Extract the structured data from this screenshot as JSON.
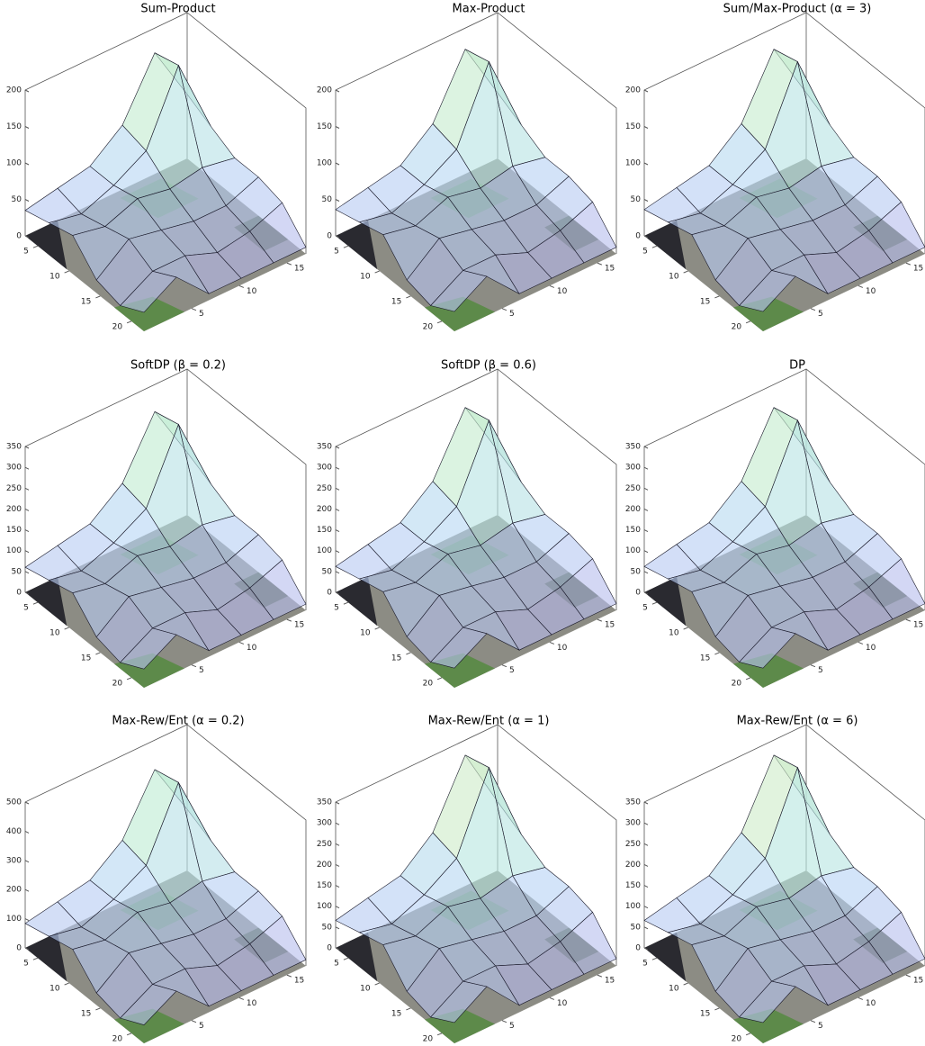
{
  "chart_data": [
    {
      "type": "surface",
      "title": "Sum-Product",
      "zlim": [
        0,
        200
      ],
      "zticks": [
        0,
        50,
        100,
        150,
        200
      ],
      "xlim": [
        3,
        22
      ],
      "xticks": [
        5,
        10,
        15,
        20
      ],
      "ylim": [
        0,
        17
      ],
      "yticks": [
        5,
        10,
        15
      ],
      "z": [
        [
          35,
          44,
          53,
          88,
          166,
          88
        ],
        [
          44,
          35,
          53,
          79,
          175,
          70
        ],
        [
          53,
          44,
          61,
          53,
          61,
          53
        ],
        [
          18,
          53,
          44,
          35,
          35,
          53
        ],
        [
          9,
          35,
          35,
          18,
          26,
          44
        ],
        [
          26,
          53,
          9,
          9,
          9,
          9
        ]
      ]
    },
    {
      "type": "surface",
      "title": "Max-Product",
      "zlim": [
        0,
        200
      ],
      "zticks": [
        0,
        50,
        100,
        150,
        200
      ],
      "xlim": [
        3,
        22
      ],
      "xticks": [
        5,
        10,
        15,
        20
      ],
      "ylim": [
        0,
        17
      ],
      "yticks": [
        5,
        10,
        15
      ],
      "z": [
        [
          36,
          45,
          54,
          90,
          171,
          90
        ],
        [
          45,
          36,
          54,
          81,
          180,
          72
        ],
        [
          54,
          45,
          63,
          54,
          63,
          54
        ],
        [
          18,
          54,
          45,
          36,
          36,
          54
        ],
        [
          9,
          36,
          36,
          18,
          27,
          45
        ],
        [
          27,
          54,
          9,
          9,
          9,
          9
        ]
      ]
    },
    {
      "type": "surface",
      "title": "Sum/Max-Product (α = 3)",
      "zlim": [
        0,
        200
      ],
      "zticks": [
        0,
        50,
        100,
        150,
        200
      ],
      "xlim": [
        3,
        22
      ],
      "xticks": [
        5,
        10,
        15,
        20
      ],
      "ylim": [
        0,
        17
      ],
      "yticks": [
        5,
        10,
        15
      ],
      "z": [
        [
          36,
          45,
          54,
          90,
          171,
          90
        ],
        [
          45,
          36,
          54,
          81,
          180,
          72
        ],
        [
          54,
          45,
          63,
          54,
          63,
          54
        ],
        [
          18,
          54,
          45,
          36,
          36,
          54
        ],
        [
          9,
          36,
          36,
          18,
          27,
          45
        ],
        [
          27,
          54,
          9,
          9,
          9,
          9
        ]
      ]
    },
    {
      "type": "surface",
      "title": "SoftDP (β = 0.2)",
      "zlim": [
        0,
        350
      ],
      "zticks": [
        0,
        50,
        100,
        150,
        200,
        250,
        300,
        350
      ],
      "xlim": [
        3,
        22
      ],
      "xticks": [
        5,
        10,
        15,
        20
      ],
      "ylim": [
        0,
        17
      ],
      "yticks": [
        5,
        10,
        15
      ],
      "z": [
        [
          60,
          75,
          90,
          150,
          285,
          150
        ],
        [
          75,
          60,
          90,
          135,
          300,
          120
        ],
        [
          90,
          75,
          105,
          90,
          105,
          90
        ],
        [
          30,
          90,
          75,
          60,
          60,
          90
        ],
        [
          15,
          60,
          60,
          30,
          45,
          75
        ],
        [
          45,
          90,
          15,
          15,
          15,
          15
        ]
      ]
    },
    {
      "type": "surface",
      "title": "SoftDP (β = 0.6)",
      "zlim": [
        0,
        350
      ],
      "zticks": [
        0,
        50,
        100,
        150,
        200,
        250,
        300,
        350
      ],
      "xlim": [
        3,
        22
      ],
      "xticks": [
        5,
        10,
        15,
        20
      ],
      "ylim": [
        0,
        17
      ],
      "yticks": [
        5,
        10,
        15
      ],
      "z": [
        [
          62,
          78,
          93,
          155,
          295,
          155
        ],
        [
          78,
          62,
          93,
          140,
          310,
          124
        ],
        [
          93,
          78,
          109,
          93,
          109,
          93
        ],
        [
          31,
          93,
          78,
          62,
          62,
          93
        ],
        [
          16,
          62,
          62,
          31,
          47,
          78
        ],
        [
          47,
          93,
          16,
          16,
          16,
          16
        ]
      ]
    },
    {
      "type": "surface",
      "title": "DP",
      "zlim": [
        0,
        350
      ],
      "zticks": [
        0,
        50,
        100,
        150,
        200,
        250,
        300,
        350
      ],
      "xlim": [
        3,
        22
      ],
      "xticks": [
        5,
        10,
        15,
        20
      ],
      "ylim": [
        0,
        17
      ],
      "yticks": [
        5,
        10,
        15
      ],
      "z": [
        [
          62,
          78,
          93,
          155,
          295,
          155
        ],
        [
          78,
          62,
          93,
          140,
          310,
          124
        ],
        [
          93,
          78,
          109,
          93,
          109,
          93
        ],
        [
          31,
          93,
          78,
          62,
          62,
          93
        ],
        [
          16,
          62,
          62,
          31,
          47,
          78
        ],
        [
          47,
          93,
          16,
          16,
          16,
          16
        ]
      ]
    },
    {
      "type": "surface",
      "title": "Max-Rew/Ent (α = 0.2)",
      "zlim": [
        0,
        500
      ],
      "zticks": [
        0,
        100,
        200,
        300,
        400,
        500
      ],
      "xlim": [
        3,
        22
      ],
      "xticks": [
        5,
        10,
        15,
        20
      ],
      "ylim": [
        0,
        17
      ],
      "yticks": [
        5,
        10,
        15
      ],
      "z": [
        [
          84,
          105,
          126,
          210,
          399,
          210
        ],
        [
          105,
          84,
          126,
          189,
          420,
          168
        ],
        [
          126,
          105,
          147,
          126,
          147,
          126
        ],
        [
          42,
          126,
          105,
          84,
          84,
          126
        ],
        [
          21,
          84,
          84,
          42,
          63,
          105
        ],
        [
          63,
          126,
          21,
          21,
          21,
          21
        ]
      ]
    },
    {
      "type": "surface",
      "title": "Max-Rew/Ent (α = 1)",
      "zlim": [
        0,
        350
      ],
      "zticks": [
        0,
        50,
        100,
        150,
        200,
        250,
        300,
        350
      ],
      "xlim": [
        3,
        22
      ],
      "xticks": [
        5,
        10,
        15,
        20
      ],
      "ylim": [
        0,
        17
      ],
      "yticks": [
        5,
        10,
        15
      ],
      "z": [
        [
          66,
          83,
          99,
          165,
          314,
          165
        ],
        [
          83,
          66,
          99,
          149,
          330,
          132
        ],
        [
          99,
          83,
          116,
          99,
          116,
          99
        ],
        [
          33,
          99,
          83,
          66,
          66,
          99
        ],
        [
          17,
          66,
          66,
          33,
          50,
          83
        ],
        [
          50,
          99,
          17,
          17,
          17,
          17
        ]
      ]
    },
    {
      "type": "surface",
      "title": "Max-Rew/Ent (α = 6)",
      "zlim": [
        0,
        350
      ],
      "zticks": [
        0,
        50,
        100,
        150,
        200,
        250,
        300,
        350
      ],
      "xlim": [
        3,
        22
      ],
      "xticks": [
        5,
        10,
        15,
        20
      ],
      "ylim": [
        0,
        17
      ],
      "yticks": [
        5,
        10,
        15
      ],
      "z": [
        [
          66,
          83,
          99,
          165,
          314,
          165
        ],
        [
          83,
          66,
          99,
          149,
          330,
          132
        ],
        [
          99,
          83,
          116,
          99,
          116,
          99
        ],
        [
          33,
          99,
          83,
          66,
          66,
          99
        ],
        [
          17,
          66,
          66,
          33,
          50,
          83
        ],
        [
          50,
          99,
          17,
          17,
          17,
          17
        ]
      ]
    }
  ]
}
